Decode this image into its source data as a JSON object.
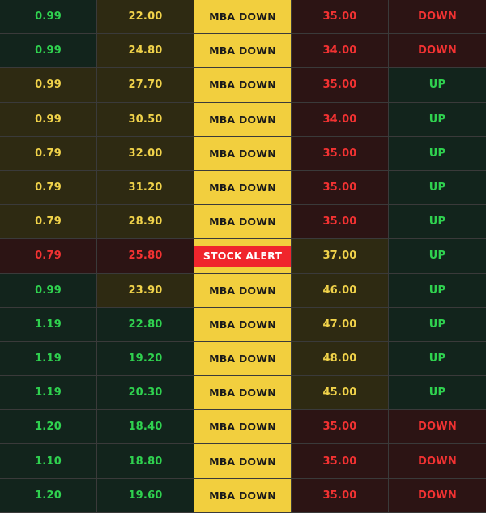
{
  "colors": {
    "green_bg": "#12241c",
    "green_text": "#2fd14f",
    "yellow_bg": "#2e2a12",
    "yellow_text": "#f0d24a",
    "red_bg": "#2c1414",
    "red_text": "#f23232",
    "status_bg": "#f2cf3e",
    "alert_bg": "#f0252c"
  },
  "rows": [
    {
      "c1": "0.99",
      "c1_tone": "green",
      "c2": "22.00",
      "c2_tone": "yellow",
      "status": "MBA DOWN",
      "alert": false,
      "c4": "35.00",
      "c4_tone": "red",
      "dir": "DOWN",
      "dir_tone": "red"
    },
    {
      "c1": "0.99",
      "c1_tone": "green",
      "c2": "24.80",
      "c2_tone": "yellow",
      "status": "MBA DOWN",
      "alert": false,
      "c4": "34.00",
      "c4_tone": "red",
      "dir": "DOWN",
      "dir_tone": "red"
    },
    {
      "c1": "0.99",
      "c1_tone": "yellow",
      "c2": "27.70",
      "c2_tone": "yellow",
      "status": "MBA DOWN",
      "alert": false,
      "c4": "35.00",
      "c4_tone": "red",
      "dir": "UP",
      "dir_tone": "green"
    },
    {
      "c1": "0.99",
      "c1_tone": "yellow",
      "c2": "30.50",
      "c2_tone": "yellow",
      "status": "MBA DOWN",
      "alert": false,
      "c4": "34.00",
      "c4_tone": "red",
      "dir": "UP",
      "dir_tone": "green"
    },
    {
      "c1": "0.79",
      "c1_tone": "yellow",
      "c2": "32.00",
      "c2_tone": "yellow",
      "status": "MBA DOWN",
      "alert": false,
      "c4": "35.00",
      "c4_tone": "red",
      "dir": "UP",
      "dir_tone": "green"
    },
    {
      "c1": "0.79",
      "c1_tone": "yellow",
      "c2": "31.20",
      "c2_tone": "yellow",
      "status": "MBA DOWN",
      "alert": false,
      "c4": "35.00",
      "c4_tone": "red",
      "dir": "UP",
      "dir_tone": "green"
    },
    {
      "c1": "0.79",
      "c1_tone": "yellow",
      "c2": "28.90",
      "c2_tone": "yellow",
      "status": "MBA DOWN",
      "alert": false,
      "c4": "35.00",
      "c4_tone": "red",
      "dir": "UP",
      "dir_tone": "green"
    },
    {
      "c1": "0.79",
      "c1_tone": "red",
      "c2": "25.80",
      "c2_tone": "red",
      "status": "STOCK ALERT",
      "alert": true,
      "c4": "37.00",
      "c4_tone": "yellow",
      "dir": "UP",
      "dir_tone": "green"
    },
    {
      "c1": "0.99",
      "c1_tone": "green",
      "c2": "23.90",
      "c2_tone": "yellow",
      "status": "MBA DOWN",
      "alert": false,
      "c4": "46.00",
      "c4_tone": "yellow",
      "dir": "UP",
      "dir_tone": "green"
    },
    {
      "c1": "1.19",
      "c1_tone": "green",
      "c2": "22.80",
      "c2_tone": "green",
      "status": "MBA DOWN",
      "alert": false,
      "c4": "47.00",
      "c4_tone": "yellow",
      "dir": "UP",
      "dir_tone": "green"
    },
    {
      "c1": "1.19",
      "c1_tone": "green",
      "c2": "19.20",
      "c2_tone": "green",
      "status": "MBA DOWN",
      "alert": false,
      "c4": "48.00",
      "c4_tone": "yellow",
      "dir": "UP",
      "dir_tone": "green"
    },
    {
      "c1": "1.19",
      "c1_tone": "green",
      "c2": "20.30",
      "c2_tone": "green",
      "status": "MBA DOWN",
      "alert": false,
      "c4": "45.00",
      "c4_tone": "yellow",
      "dir": "UP",
      "dir_tone": "green"
    },
    {
      "c1": "1.20",
      "c1_tone": "green",
      "c2": "18.40",
      "c2_tone": "green",
      "status": "MBA DOWN",
      "alert": false,
      "c4": "35.00",
      "c4_tone": "red",
      "dir": "DOWN",
      "dir_tone": "red"
    },
    {
      "c1": "1.10",
      "c1_tone": "green",
      "c2": "18.80",
      "c2_tone": "green",
      "status": "MBA DOWN",
      "alert": false,
      "c4": "35.00",
      "c4_tone": "red",
      "dir": "DOWN",
      "dir_tone": "red"
    },
    {
      "c1": "1.20",
      "c1_tone": "green",
      "c2": "19.60",
      "c2_tone": "green",
      "status": "MBA DOWN",
      "alert": false,
      "c4": "35.00",
      "c4_tone": "red",
      "dir": "DOWN",
      "dir_tone": "red"
    }
  ]
}
